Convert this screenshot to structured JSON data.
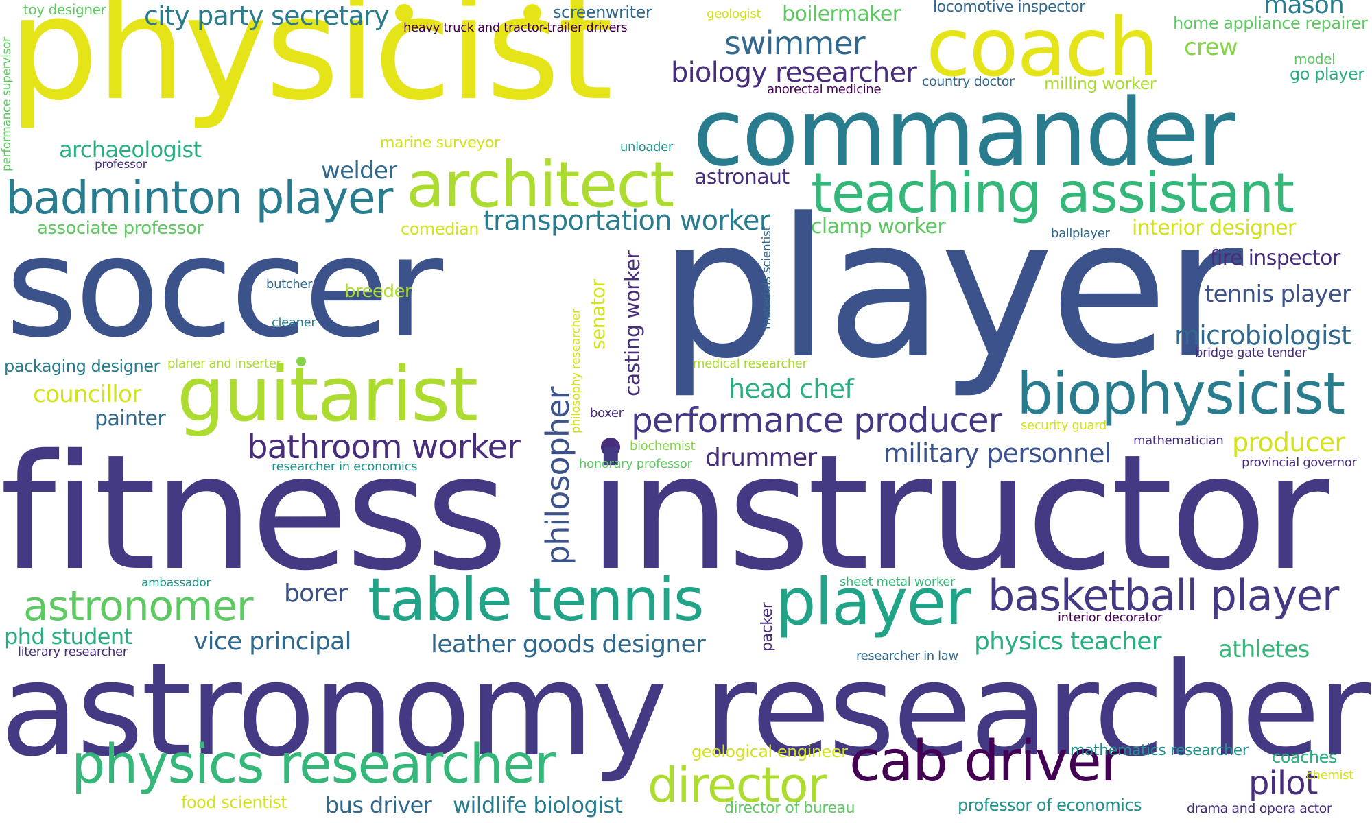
{
  "palette": {
    "c_deep": "#440154",
    "c_indigo": "#472d7b",
    "c_purple": "#443983",
    "c_blue": "#3b528b",
    "c_steel": "#31688e",
    "c_teal_blue": "#287c8e",
    "c_teal": "#21918c",
    "c_green_teal": "#20a386",
    "c_green": "#28ae80",
    "c_mid_green": "#35b779",
    "c_light_green": "#5ec962",
    "c_lime": "#86d549",
    "c_yellow_green": "#addc30",
    "c_chartreuse": "#d2e21b",
    "c_yellow": "#e5e419",
    "background": "#ffffff"
  },
  "words": [
    {
      "text": "physicist"
    },
    {
      "text": "coach"
    },
    {
      "text": "commander"
    },
    {
      "text": "soccer"
    },
    {
      "text": "player"
    },
    {
      "text": "fitness"
    },
    {
      "text": "instructor"
    },
    {
      "text": "astronomy researcher"
    },
    {
      "text": "architect"
    },
    {
      "text": "teaching assistant"
    },
    {
      "text": "guitarist"
    },
    {
      "text": "biophysicist"
    },
    {
      "text": "table tennis"
    },
    {
      "text": "player"
    },
    {
      "text": "badminton player"
    },
    {
      "text": "physics researcher"
    },
    {
      "text": "cab driver"
    },
    {
      "text": "basketball player"
    },
    {
      "text": "director"
    },
    {
      "text": "performance producer"
    },
    {
      "text": "astronomer"
    },
    {
      "text": "philosopher"
    },
    {
      "text": "city party secretary"
    },
    {
      "text": "swimmer"
    },
    {
      "text": "biology researcher"
    },
    {
      "text": "bathroom worker"
    },
    {
      "text": "transportation worker"
    },
    {
      "text": "military personnel"
    },
    {
      "text": "leather goods designer"
    },
    {
      "text": "microbiologist"
    },
    {
      "text": "mason"
    },
    {
      "text": "head chef"
    },
    {
      "text": "tennis player"
    },
    {
      "text": "vice principal"
    },
    {
      "text": "bus driver"
    },
    {
      "text": "wildlife biologist"
    },
    {
      "text": "pilot"
    },
    {
      "text": "physics teacher"
    },
    {
      "text": "producer"
    },
    {
      "text": "drummer"
    },
    {
      "text": "fire inspector"
    },
    {
      "text": "welder"
    },
    {
      "text": "archaeologist"
    },
    {
      "text": "boilermaker"
    },
    {
      "text": "crew"
    },
    {
      "text": "astronaut"
    },
    {
      "text": "phd student"
    },
    {
      "text": "athletes"
    },
    {
      "text": "borer"
    },
    {
      "text": "councillor"
    },
    {
      "text": "casting worker"
    },
    {
      "text": "senator"
    },
    {
      "text": "painter"
    },
    {
      "text": "interior designer"
    },
    {
      "text": "clamp worker"
    },
    {
      "text": "associate professor"
    },
    {
      "text": "packaging designer"
    },
    {
      "text": "locomotive inspector"
    },
    {
      "text": "home appliance repairer"
    },
    {
      "text": "coaches"
    },
    {
      "text": "mathematics researcher"
    },
    {
      "text": "professor of economics"
    },
    {
      "text": "milling worker"
    },
    {
      "text": "go player"
    },
    {
      "text": "model"
    },
    {
      "text": "comedian"
    },
    {
      "text": "screenwriter"
    },
    {
      "text": "marine surveyor"
    },
    {
      "text": "geological engineer"
    },
    {
      "text": "director of bureau"
    },
    {
      "text": "food scientist"
    },
    {
      "text": "drama and opera actor"
    },
    {
      "text": "breeder"
    },
    {
      "text": "packer"
    },
    {
      "text": "toy designer"
    },
    {
      "text": "heavy truck and tractor-trailer drivers"
    },
    {
      "text": "geologist"
    },
    {
      "text": "anorectal medicine"
    },
    {
      "text": "country doctor"
    },
    {
      "text": "unloader"
    },
    {
      "text": "professor"
    },
    {
      "text": "ballplayer"
    },
    {
      "text": "butcher"
    },
    {
      "text": "cleaner"
    },
    {
      "text": "planer and inserter"
    },
    {
      "text": "medical researcher"
    },
    {
      "text": "bridge gate tender"
    },
    {
      "text": "boxer"
    },
    {
      "text": "biochemist"
    },
    {
      "text": "security guard"
    },
    {
      "text": "mathematician"
    },
    {
      "text": "provincial governor"
    },
    {
      "text": "researcher in economics"
    },
    {
      "text": "honorary professor"
    },
    {
      "text": "ambassador"
    },
    {
      "text": "sheet metal worker"
    },
    {
      "text": "interior decorator"
    },
    {
      "text": "literary researcher"
    },
    {
      "text": "researcher in law"
    },
    {
      "text": "chemist"
    },
    {
      "text": "performance supervisor"
    },
    {
      "text": "materials scientist"
    },
    {
      "text": "philosophy researcher"
    }
  ]
}
